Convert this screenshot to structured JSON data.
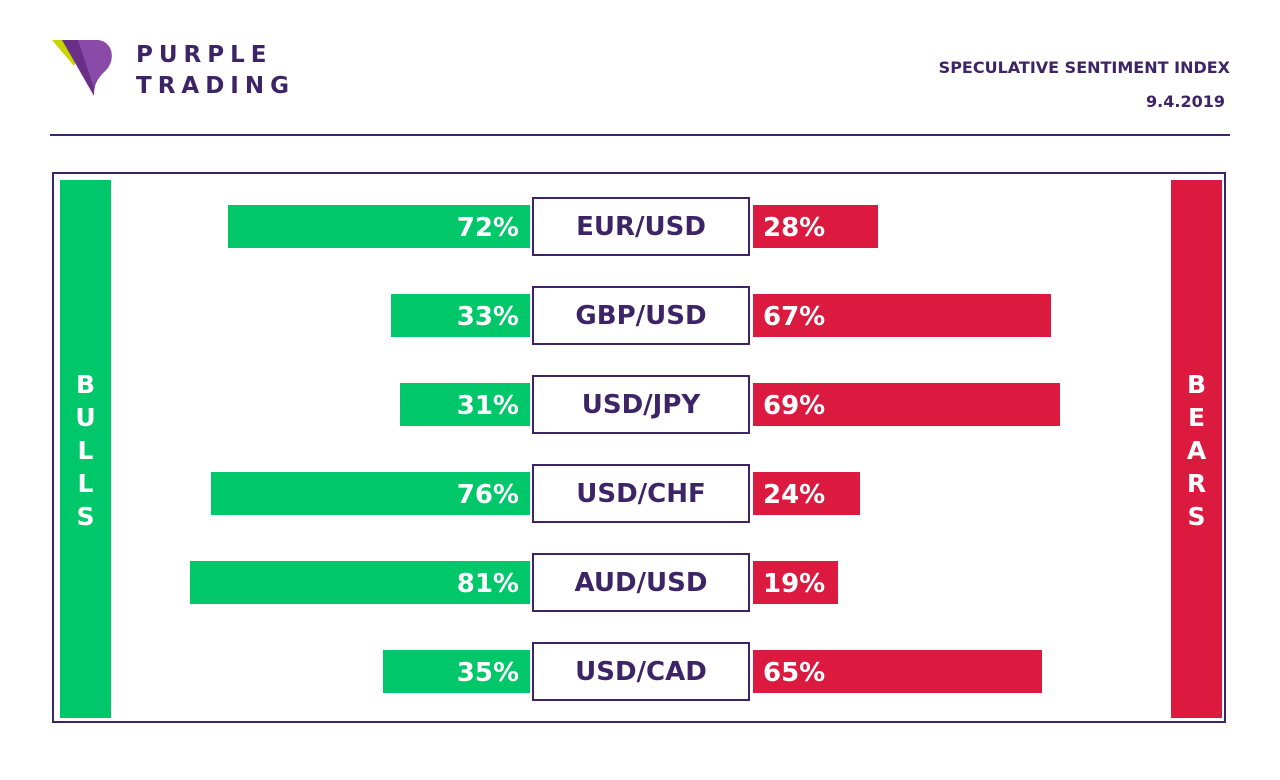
{
  "brand": {
    "line1": "PURPLE",
    "line2": "TRADING"
  },
  "header": {
    "title": "SPECULATIVE SENTIMENT INDEX",
    "date": "9.4.2019"
  },
  "sides": {
    "bulls": "BULLS",
    "bears": "BEARS"
  },
  "colors": {
    "bull": "#00c86a",
    "bear": "#dc1a40",
    "purple": "#3c2466",
    "logo_accent": "#c8d400"
  },
  "chart_data": {
    "type": "bar",
    "categories": [
      "EUR/USD",
      "GBP/USD",
      "USD/JPY",
      "USD/CHF",
      "AUD/USD",
      "USD/CAD"
    ],
    "series": [
      {
        "name": "BULLS",
        "values": [
          72,
          33,
          31,
          76,
          81,
          35
        ],
        "labels": [
          "72%",
          "33%",
          "31%",
          "76%",
          "81%",
          "35%"
        ]
      },
      {
        "name": "BEARS",
        "values": [
          28,
          67,
          69,
          24,
          19,
          65
        ],
        "labels": [
          "28%",
          "67%",
          "69%",
          "24%",
          "19%",
          "65%"
        ]
      }
    ],
    "title": "SPECULATIVE SENTIMENT INDEX",
    "xlabel": "",
    "ylabel": ""
  }
}
